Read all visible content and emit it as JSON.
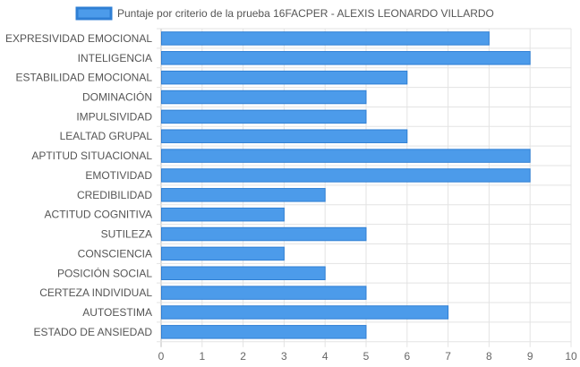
{
  "chart_data": {
    "type": "bar",
    "orientation": "horizontal",
    "legend": {
      "label": "Puntaje por criterio de la prueba 16FACPER - ALEXIS LEONARDO VILLARDO",
      "placement": "top-center"
    },
    "categories": [
      "EXPRESIVIDAD EMOCIONAL",
      "INTELIGENCIA",
      "ESTABILIDAD EMOCIONAL",
      "DOMINACIÓN",
      "IMPULSIVIDAD",
      "LEALTAD GRUPAL",
      "APTITUD SITUACIONAL",
      "EMOTIVIDAD",
      "CREDIBILIDAD",
      "ACTITUD COGNITIVA",
      "SUTILEZA",
      "CONSCIENCIA",
      "POSICIÓN SOCIAL",
      "CERTEZA INDIVIDUAL",
      "AUTOESTIMA",
      "ESTADO DE ANSIEDAD"
    ],
    "series": [
      {
        "name": "Puntaje por criterio de la prueba 16FACPER - ALEXIS LEONARDO VILLARDO",
        "values": [
          8,
          9,
          6,
          5,
          5,
          6,
          9,
          9,
          4,
          3,
          5,
          3,
          4,
          5,
          7,
          5
        ]
      }
    ],
    "xlim": [
      0,
      10
    ],
    "xticks": [
      "0",
      "1",
      "2",
      "3",
      "4",
      "5",
      "6",
      "7",
      "8",
      "9",
      "10"
    ],
    "grid": true,
    "colors": {
      "bar_fill": "#4c9bea",
      "bar_stroke": "#2f7fd4",
      "grid": "#e3e3e3"
    }
  }
}
